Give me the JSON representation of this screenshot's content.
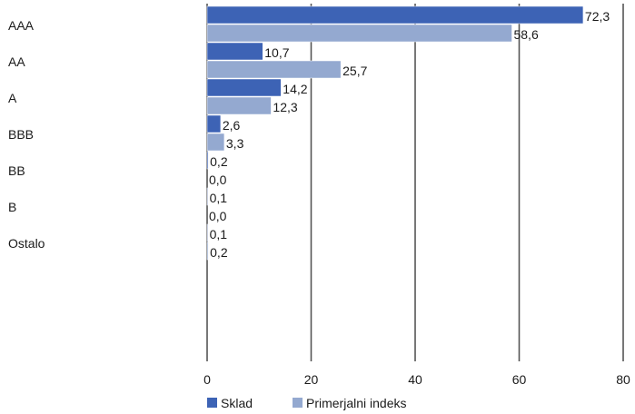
{
  "chart_data": {
    "type": "bar",
    "orientation": "horizontal",
    "categories": [
      "AAA",
      "AA",
      "A",
      "BBB",
      "BB",
      "B",
      "Ostalo"
    ],
    "series": [
      {
        "name": "Sklad",
        "values": [
          72.3,
          10.7,
          14.2,
          2.6,
          0.2,
          0.1,
          0.1
        ],
        "labels": [
          "72,3",
          "10,7",
          "14,2",
          "2,6",
          "0,2",
          "0,1",
          "0,1"
        ],
        "color": "#3d63b5"
      },
      {
        "name": "Primerjalni indeks",
        "values": [
          58.6,
          25.7,
          12.3,
          3.3,
          0.0,
          0.0,
          0.2
        ],
        "labels": [
          "58,6",
          "25,7",
          "12,3",
          "3,3",
          "0,0",
          "0,0",
          "0,2"
        ],
        "color": "#94a9d0"
      }
    ],
    "xlim": [
      0,
      80
    ],
    "xticks": [
      "0",
      "20",
      "40",
      "60",
      "80"
    ],
    "grid": true,
    "legend_position": "bottom-left"
  }
}
